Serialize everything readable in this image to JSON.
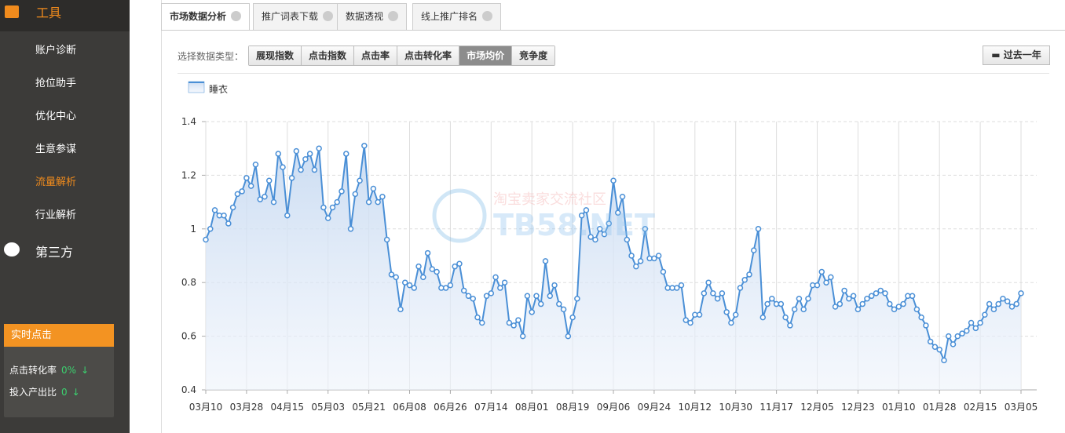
{
  "sidebar": {
    "header": "工具",
    "items": [
      "账户诊断",
      "抢位助手",
      "优化中心",
      "生意参谋",
      "流量解析",
      "行业解析"
    ],
    "active": 4,
    "section": "第三方",
    "panel": {
      "title": "实时点击",
      "rows": [
        {
          "label": "点击转化率",
          "value": "0%"
        },
        {
          "label": "投入产出比",
          "value": "0"
        }
      ]
    }
  },
  "tabs": [
    "市场数据分析",
    "推广词表下载",
    "数据透视",
    "线上推广排名"
  ],
  "toolbar": {
    "label": "选择数据类型：",
    "buttons": [
      "展现指数",
      "点击指数",
      "点击率",
      "点击转化率",
      "市场均价",
      "竞争度"
    ],
    "active": 4,
    "range": "过去一年"
  },
  "watermark": {
    "cn": "淘宝卖家交流社区",
    "en": "TB58.NET"
  },
  "chart_data": {
    "type": "line",
    "legend": "top-left",
    "grid": true,
    "series": [
      {
        "name": "睡衣",
        "color": "#4a8fd6",
        "values": [
          0.96,
          1.0,
          1.07,
          1.05,
          1.05,
          1.02,
          1.08,
          1.13,
          1.14,
          1.19,
          1.16,
          1.24,
          1.11,
          1.12,
          1.18,
          1.1,
          1.28,
          1.23,
          1.05,
          1.19,
          1.29,
          1.22,
          1.26,
          1.28,
          1.22,
          1.3,
          1.08,
          1.04,
          1.08,
          1.1,
          1.14,
          1.28,
          1.0,
          1.13,
          1.18,
          1.31,
          1.1,
          1.15,
          1.1,
          1.12,
          0.96,
          0.83,
          0.82,
          0.7,
          0.8,
          0.79,
          0.78,
          0.86,
          0.82,
          0.91,
          0.85,
          0.84,
          0.78,
          0.78,
          0.79,
          0.86,
          0.87,
          0.77,
          0.75,
          0.74,
          0.67,
          0.65,
          0.75,
          0.76,
          0.82,
          0.78,
          0.8,
          0.65,
          0.64,
          0.66,
          0.6,
          0.75,
          0.69,
          0.75,
          0.72,
          0.88,
          0.75,
          0.79,
          0.72,
          0.7,
          0.6,
          0.67,
          0.74,
          1.05,
          1.07,
          0.97,
          0.96,
          1.0,
          0.98,
          1.02,
          1.18,
          1.06,
          1.12,
          0.96,
          0.9,
          0.86,
          0.88,
          1.0,
          0.89,
          0.89,
          0.9,
          0.84,
          0.78,
          0.78,
          0.78,
          0.79,
          0.66,
          0.65,
          0.68,
          0.68,
          0.76,
          0.8,
          0.76,
          0.74,
          0.76,
          0.69,
          0.65,
          0.68,
          0.78,
          0.81,
          0.83,
          0.92,
          1.0,
          0.67,
          0.72,
          0.74,
          0.72,
          0.72,
          0.67,
          0.64,
          0.7,
          0.74,
          0.7,
          0.74,
          0.79,
          0.79,
          0.84,
          0.8,
          0.82,
          0.71,
          0.72,
          0.77,
          0.74,
          0.75,
          0.7,
          0.72,
          0.74,
          0.75,
          0.76,
          0.77,
          0.76,
          0.72,
          0.7,
          0.71,
          0.72,
          0.75,
          0.75,
          0.7,
          0.67,
          0.64,
          0.58,
          0.56,
          0.55,
          0.51,
          0.6,
          0.57,
          0.6,
          0.61,
          0.62,
          0.65,
          0.63,
          0.65,
          0.68,
          0.72,
          0.7,
          0.72,
          0.74,
          0.73,
          0.71,
          0.72,
          0.76
        ]
      }
    ],
    "xlim": [
      0,
      180
    ],
    "xticks": [
      {
        "value": 0,
        "label": "03月10"
      },
      {
        "value": 9,
        "label": "03月28"
      },
      {
        "value": 18,
        "label": "04月15"
      },
      {
        "value": 27,
        "label": "05月03"
      },
      {
        "value": 36,
        "label": "05月21"
      },
      {
        "value": 45,
        "label": "06月08"
      },
      {
        "value": 54,
        "label": "06月26"
      },
      {
        "value": 63,
        "label": "07月14"
      },
      {
        "value": 72,
        "label": "08月01"
      },
      {
        "value": 81,
        "label": "08月19"
      },
      {
        "value": 90,
        "label": "09月06"
      },
      {
        "value": 99,
        "label": "09月24"
      },
      {
        "value": 108,
        "label": "10月12"
      },
      {
        "value": 117,
        "label": "10月30"
      },
      {
        "value": 126,
        "label": "11月17"
      },
      {
        "value": 135,
        "label": "12月05"
      },
      {
        "value": 144,
        "label": "12月23"
      },
      {
        "value": 153,
        "label": "01月10"
      },
      {
        "value": 162,
        "label": "01月28"
      },
      {
        "value": 171,
        "label": "02月15"
      },
      {
        "value": 180,
        "label": "03月05"
      }
    ],
    "ylim": [
      0.4,
      1.4
    ],
    "yticks": [
      0.4,
      0.6,
      0.8,
      1,
      1.2,
      1.4
    ]
  }
}
